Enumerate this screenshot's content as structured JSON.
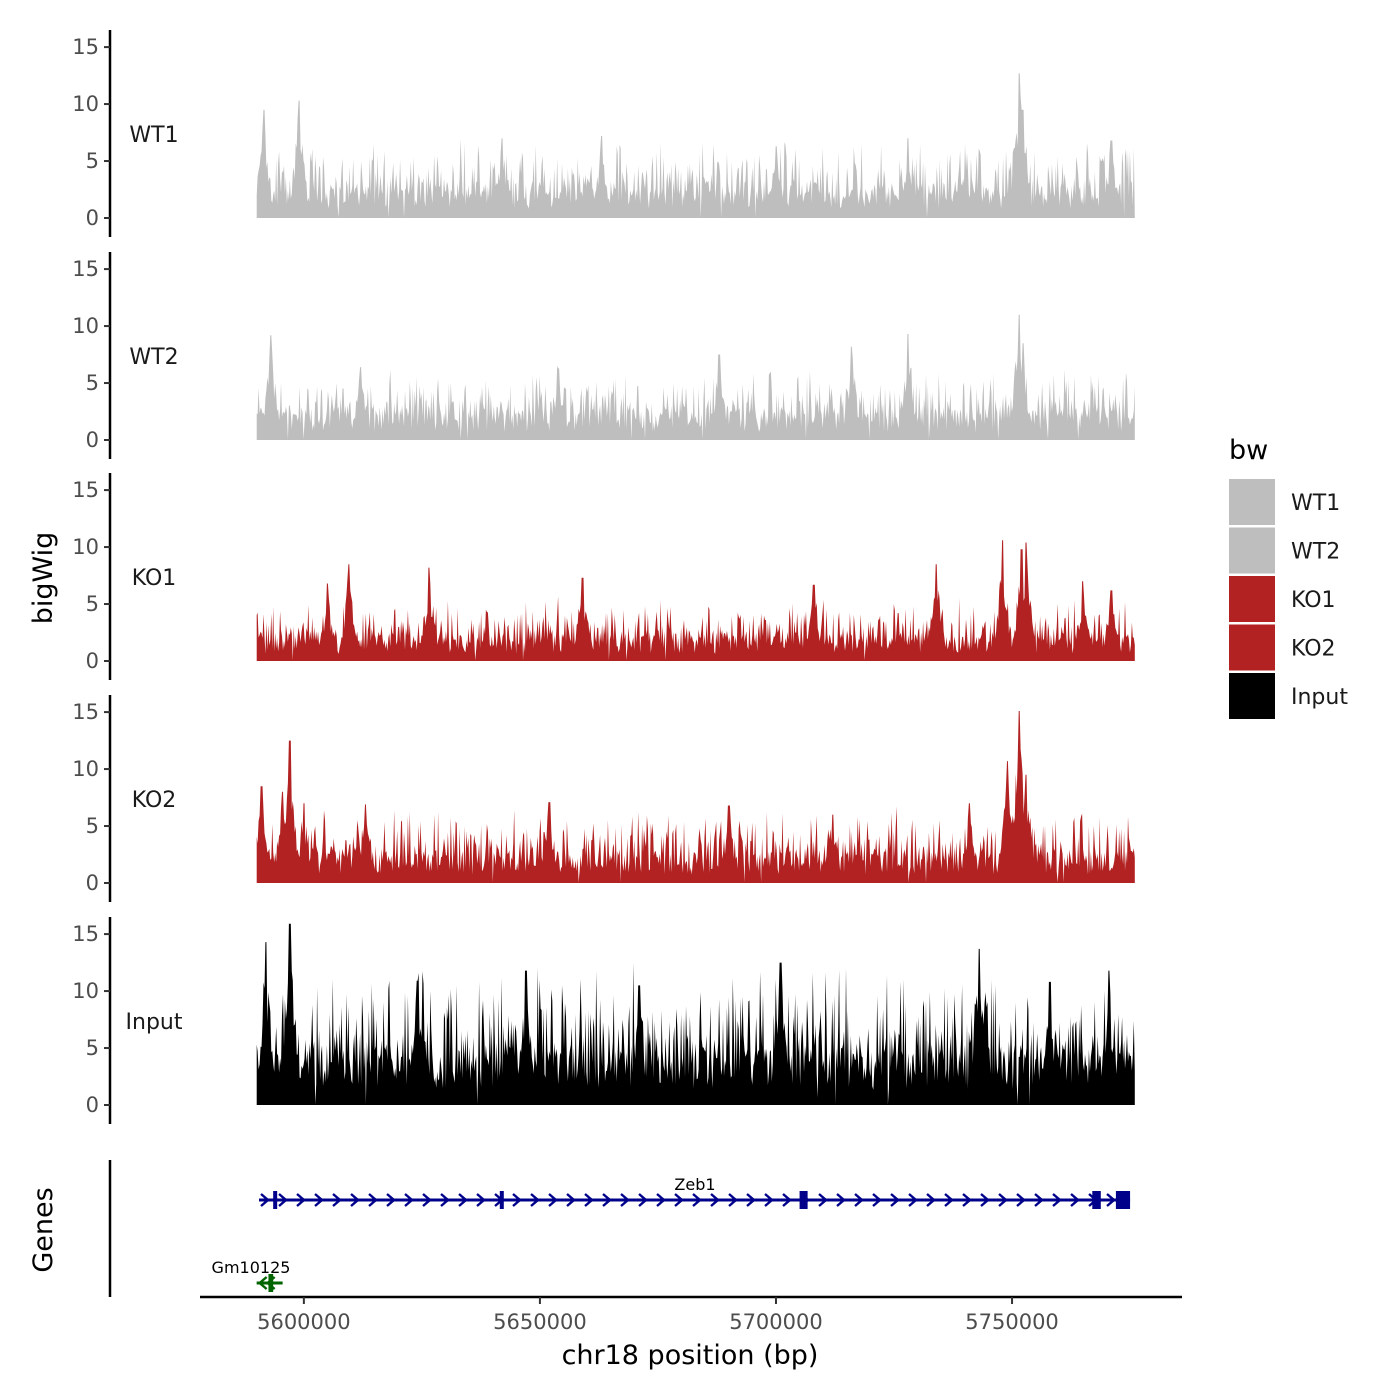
{
  "chart_data": {
    "type": "area",
    "title": "",
    "xlabel": "chr18 position (bp)",
    "ylabel": "bigWig",
    "genes_label": "Genes",
    "xlim": [
      5578000,
      5786000
    ],
    "data_range": [
      5590000,
      5776000
    ],
    "x_ticks": [
      5600000,
      5650000,
      5700000,
      5750000
    ],
    "x_tick_labels": [
      "5600000",
      "5650000",
      "5700000",
      "5750000"
    ],
    "ylim": [
      0,
      16.5
    ],
    "y_ticks": [
      0,
      5,
      10,
      15
    ],
    "y_tick_labels": [
      "0",
      "5",
      "10",
      "15"
    ],
    "legend": {
      "title": "bw",
      "position": "right",
      "entries": [
        {
          "label": "WT1",
          "color": "#bebebe"
        },
        {
          "label": "WT2",
          "color": "#bebebe"
        },
        {
          "label": "KO1",
          "color": "#b22222"
        },
        {
          "label": "KO2",
          "color": "#b22222"
        },
        {
          "label": "Input",
          "color": "#000000"
        }
      ]
    },
    "tracks": [
      {
        "name": "WT1",
        "color": "#bebebe",
        "baseline": 2.2,
        "noise": 2.4,
        "seed": 11,
        "peaks": [
          [
            5591500,
            9.5
          ],
          [
            5599000,
            10.3
          ],
          [
            5642000,
            7.0
          ],
          [
            5663000,
            7.2
          ],
          [
            5700000,
            6.3
          ],
          [
            5728000,
            7.0
          ],
          [
            5751500,
            12.7
          ],
          [
            5752200,
            9.5
          ],
          [
            5771000,
            6.8
          ]
        ]
      },
      {
        "name": "WT2",
        "color": "#bebebe",
        "baseline": 2.0,
        "noise": 2.2,
        "seed": 23,
        "peaks": [
          [
            5593000,
            9.2
          ],
          [
            5612000,
            6.4
          ],
          [
            5654000,
            6.3
          ],
          [
            5688000,
            7.5
          ],
          [
            5716000,
            8.2
          ],
          [
            5728000,
            9.3
          ],
          [
            5751500,
            11.0
          ],
          [
            5752300,
            8.5
          ]
        ]
      },
      {
        "name": "KO1",
        "color": "#b22222",
        "baseline": 1.7,
        "noise": 2.0,
        "seed": 37,
        "peaks": [
          [
            5605000,
            6.8
          ],
          [
            5609500,
            8.5
          ],
          [
            5626500,
            8.2
          ],
          [
            5659000,
            7.3
          ],
          [
            5708000,
            6.7
          ],
          [
            5734000,
            8.5
          ],
          [
            5748000,
            10.6
          ],
          [
            5753000,
            10.4
          ],
          [
            5752000,
            9.8
          ],
          [
            5765000,
            7.0
          ],
          [
            5771000,
            6.2
          ]
        ]
      },
      {
        "name": "KO2",
        "color": "#b22222",
        "baseline": 2.0,
        "noise": 2.3,
        "seed": 51,
        "peaks": [
          [
            5591000,
            8.5
          ],
          [
            5595500,
            8.0
          ],
          [
            5597000,
            12.5
          ],
          [
            5600000,
            7.0
          ],
          [
            5613000,
            6.9
          ],
          [
            5652000,
            7.1
          ],
          [
            5690000,
            6.8
          ],
          [
            5712000,
            6.0
          ],
          [
            5741000,
            7.0
          ],
          [
            5749000,
            10.7
          ],
          [
            5751500,
            15.1
          ],
          [
            5753000,
            9.5
          ]
        ]
      },
      {
        "name": "Input",
        "color": "#000000",
        "baseline": 3.8,
        "noise": 4.2,
        "seed": 73,
        "peaks": [
          [
            5592000,
            14.3
          ],
          [
            5597000,
            15.9
          ],
          [
            5624000,
            10.9
          ],
          [
            5647000,
            11.8
          ],
          [
            5671000,
            10.5
          ],
          [
            5701000,
            12.5
          ],
          [
            5743000,
            13.7
          ],
          [
            5758000,
            10.8
          ],
          [
            5770500,
            11.8
          ]
        ]
      }
    ],
    "genes": [
      {
        "name": "Zeb1",
        "strand": "+",
        "start": 5590500,
        "end": 5775000,
        "color": "#00008b",
        "row": 1,
        "exons": [
          [
            5593500,
            5594200
          ],
          [
            5641500,
            5642200
          ],
          [
            5705000,
            5706700
          ],
          [
            5767000,
            5768800
          ],
          [
            5772000,
            5775000
          ]
        ]
      },
      {
        "name": "Gm10125",
        "strand": "-",
        "start": 5590000,
        "end": 5595500,
        "color": "#006400",
        "row": 2,
        "exons": [
          [
            5592500,
            5593500
          ]
        ]
      }
    ]
  }
}
